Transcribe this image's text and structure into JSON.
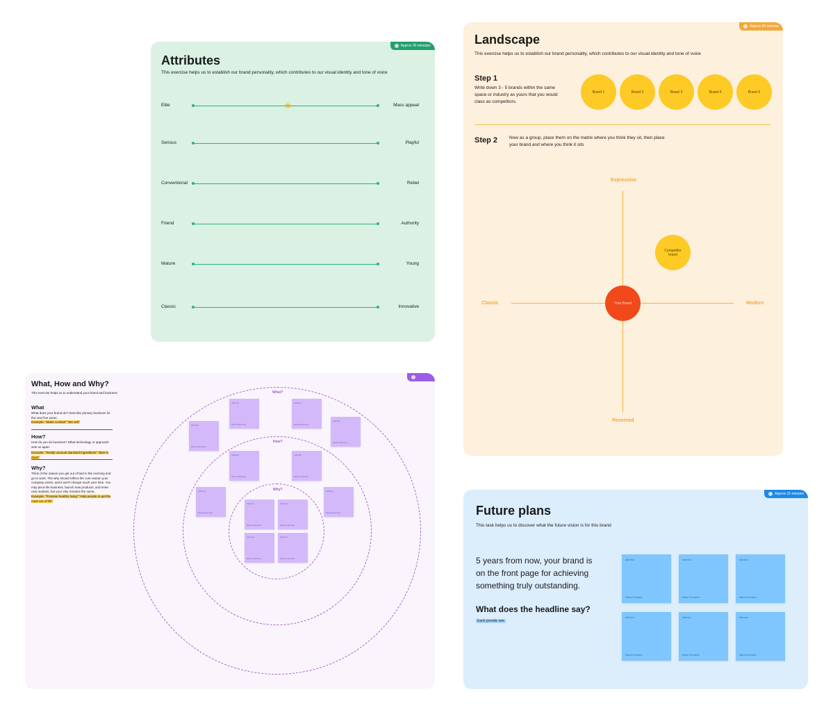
{
  "attributes": {
    "title": "Attributes",
    "description": "This exercise helps us to establish our brand personality, which contributes to our visual identity and tone of voice",
    "tag": "Approx 30 mins/per",
    "tag_color": "#22a06b",
    "rows": [
      {
        "left": "Elite",
        "right": "Mass appeal",
        "star": 0.5
      },
      {
        "left": "Serious",
        "right": "Playful"
      },
      {
        "left": "Conventional",
        "right": "Rebel"
      },
      {
        "left": "Friend",
        "right": "Authority"
      },
      {
        "left": "Mature",
        "right": "Young"
      },
      {
        "left": "Classic",
        "right": "Innovative"
      }
    ]
  },
  "landscape": {
    "title": "Landscape",
    "description": "This exercise helps us to establish our brand personality, which contributes to our visual identity and tone of voice",
    "tag": "Approx 30 minutes",
    "tag_color": "#f2a93b",
    "step1_label": "Step 1",
    "step1_text": "Write down 3 - 5 brands within the same space or industry as yours that you would class as competitors.",
    "brands": [
      "Brand 1",
      "Brand 2",
      "Brand 3",
      "Brand 4",
      "Brand 5"
    ],
    "step2_label": "Step 2",
    "step2_text": "Now as a group, place them on the matrix where you think they sit, then place your brand and where you think it sits",
    "axis_top": "Expressive",
    "axis_bottom": "Reserved",
    "axis_left": "Classic",
    "axis_right": "Modern",
    "competitor": "Competitor brand",
    "your_brand": "Your Brand"
  },
  "whw": {
    "title": "What, How and Why?",
    "description": "This exercise helps us to understand your brand and business",
    "what_h": "What",
    "what_text": "What does your brand do? Describe primary business for the next five years.",
    "what_example": "Example: \"Make cocktail\" \"We sell\"",
    "how_h": "How?",
    "how_text": "How do you do business? What technology or approach sets us apart.",
    "how_example": "Example: \"Really unusual standard ingredients\" \"Best in class\"",
    "why_h": "Why?",
    "why_text": "Think of the reason you get out of bed in the morning and go to work. The why should reflect the core reason your company exists, and it won't change much over time. You may pivot the business, launch new products, and enter new markets, but your why remains the same.",
    "why_example": "Example: \"Promote healthy living\" \"Help people to get the most out of life\"",
    "ring_what": "What?",
    "ring_how": "How?",
    "ring_why": "Why?",
    "tag_color": "#9b5de5",
    "note_top": "Add text",
    "note_bottom": "Name Surname"
  },
  "future": {
    "title": "Future plans",
    "description": "This task helps us to discover what the future vision is for this brand",
    "tag": "Approx 15 minutes",
    "tag_color": "#1e88e5",
    "statement": "5 years from now, your brand is on the front page for achieving something truly outstanding.",
    "question": "What does the headline say?",
    "hint": "Each provide one",
    "note_top": "Add text",
    "note_bottom": "Name Surname"
  }
}
